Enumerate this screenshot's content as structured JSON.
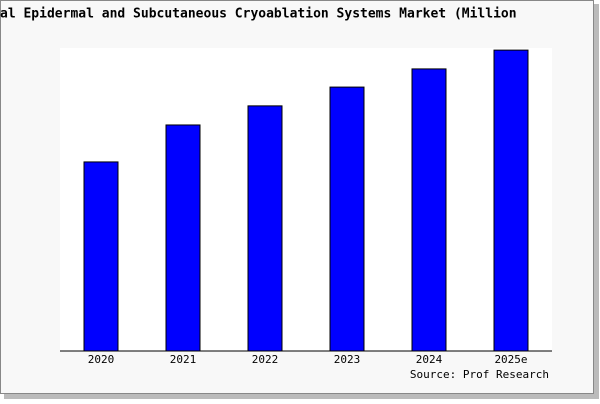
{
  "chart_data": {
    "type": "bar",
    "title": "al Epidermal and Subcutaneous Cryoablation Systems Market (Million",
    "categories": [
      "2020",
      "2021",
      "2022",
      "2023",
      "2024",
      "2025e"
    ],
    "values": [
      62.4,
      74.6,
      80.9,
      87.1,
      93.1,
      99.3
    ],
    "color": "#0000ff",
    "ylim": [
      0,
      100
    ],
    "source": "Source: Prof Research"
  }
}
